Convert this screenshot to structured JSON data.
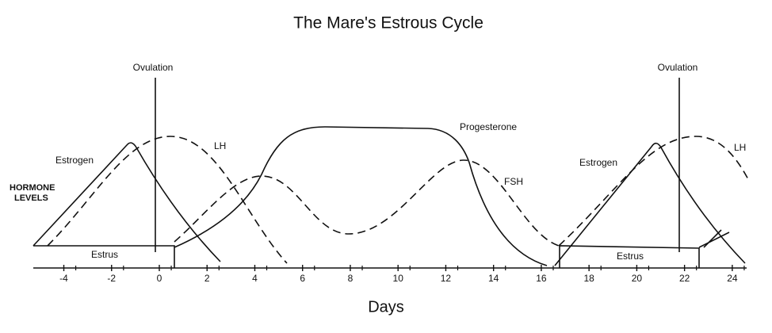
{
  "title": "The Mare's Estrous Cycle",
  "y_label": [
    "HORMONE",
    "LEVELS"
  ],
  "x_label": "Days",
  "ovulation": [
    "Ovulation",
    "Ovulation"
  ],
  "curve_labels": {
    "estrogen": [
      "Estrogen",
      "Estrogen"
    ],
    "lh": [
      "LH",
      "LH"
    ],
    "progesterone": "Progesterone",
    "fsh": "FSH"
  },
  "estrus": [
    "Estrus",
    "Estrus"
  ],
  "axis": {
    "ticks": [
      -4,
      -2,
      0,
      2,
      4,
      6,
      8,
      10,
      12,
      14,
      16,
      18,
      20,
      22,
      24
    ]
  }
}
